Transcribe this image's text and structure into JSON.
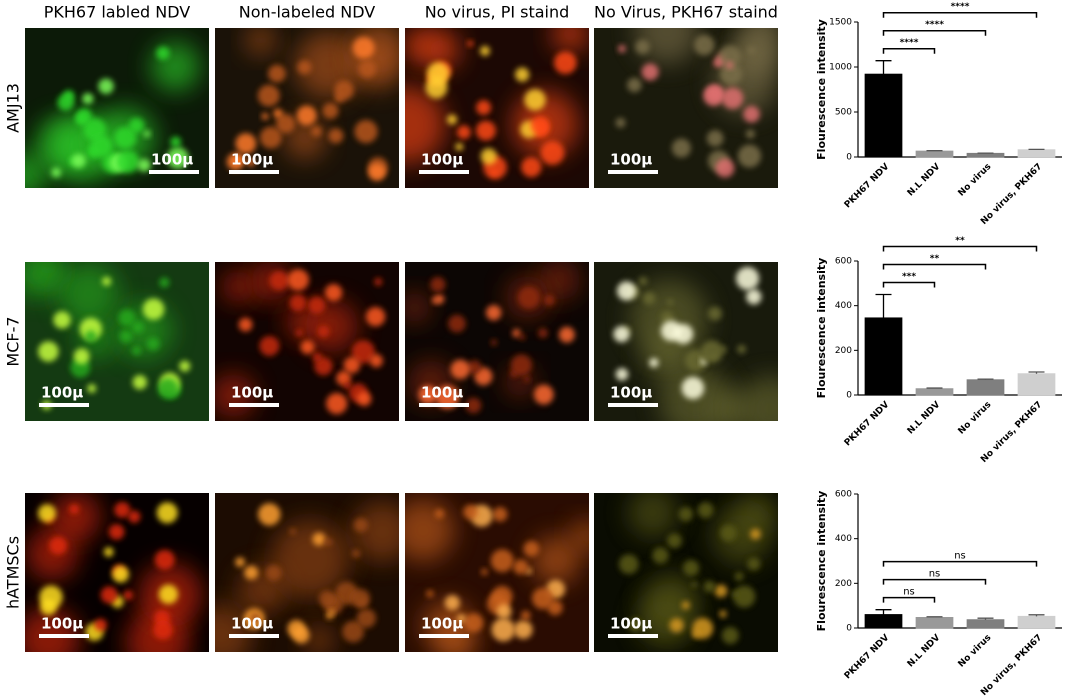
{
  "column_headers": [
    "PKH67 labled NDV",
    "Non-labeled NDV",
    "No virus, PI staind",
    "No Virus, PKH67 staind"
  ],
  "row_labels": [
    "AMJ13",
    "MCF-7",
    "hATMSCs"
  ],
  "scale_bars": [
    [
      "100μ",
      "100μ",
      "100μ",
      "100μ"
    ],
    [
      "100μ",
      "100μ",
      "100μ",
      "100μ"
    ],
    [
      "100μ",
      "100μ",
      "100μ",
      "100μ"
    ]
  ],
  "chart_data": [
    {
      "type": "bar",
      "ylabel": "Flourescence intensity",
      "categories": [
        "PKH67 NDV",
        "N.L NDV",
        "No virus",
        "No virus, PKH67"
      ],
      "values": [
        920,
        65,
        40,
        80
      ],
      "errors": [
        150,
        5,
        3,
        5
      ],
      "colors": [
        "#000000",
        "#999999",
        "#7f7f7f",
        "#cfcfcf"
      ],
      "ylim": [
        0,
        1500
      ],
      "yticks": [
        0,
        500,
        1000,
        1500
      ],
      "comparisons": [
        {
          "label": "****",
          "from": "PKH67 NDV",
          "to": "N.L NDV"
        },
        {
          "label": "****",
          "from": "PKH67 NDV",
          "to": "No virus"
        },
        {
          "label": "****",
          "from": "PKH67 NDV",
          "to": "No virus, PKH67"
        }
      ]
    },
    {
      "type": "bar",
      "ylabel": "Flourescence intensity",
      "categories": [
        "PKH67 NDV",
        "N.L NDV",
        "No virus",
        "No virus, PKH67"
      ],
      "values": [
        345,
        28,
        68,
        95
      ],
      "errors": [
        105,
        3,
        3,
        8
      ],
      "colors": [
        "#000000",
        "#999999",
        "#7f7f7f",
        "#cfcfcf"
      ],
      "ylim": [
        0,
        600
      ],
      "yticks": [
        0,
        200,
        400,
        600
      ],
      "comparisons": [
        {
          "label": "***",
          "from": "PKH67 NDV",
          "to": "N.L NDV"
        },
        {
          "label": "**",
          "from": "PKH67 NDV",
          "to": "No virus"
        },
        {
          "label": "**",
          "from": "PKH67 NDV",
          "to": "No virus, PKH67"
        }
      ]
    },
    {
      "type": "bar",
      "ylabel": "Flourescence intensity",
      "categories": [
        "PKH67 NDV",
        "N.L NDV",
        "No virus",
        "No virus, PKH67"
      ],
      "values": [
        60,
        47,
        37,
        52
      ],
      "errors": [
        22,
        3,
        7,
        7
      ],
      "colors": [
        "#000000",
        "#999999",
        "#7f7f7f",
        "#cfcfcf"
      ],
      "ylim": [
        0,
        600
      ],
      "yticks": [
        0,
        200,
        400,
        600
      ],
      "comparisons": [
        {
          "label": "ns",
          "from": "PKH67 NDV",
          "to": "N.L NDV"
        },
        {
          "label": "ns",
          "from": "PKH67 NDV",
          "to": "No virus"
        },
        {
          "label": "ns",
          "from": "PKH67 NDV",
          "to": "No virus, PKH67"
        }
      ]
    }
  ]
}
